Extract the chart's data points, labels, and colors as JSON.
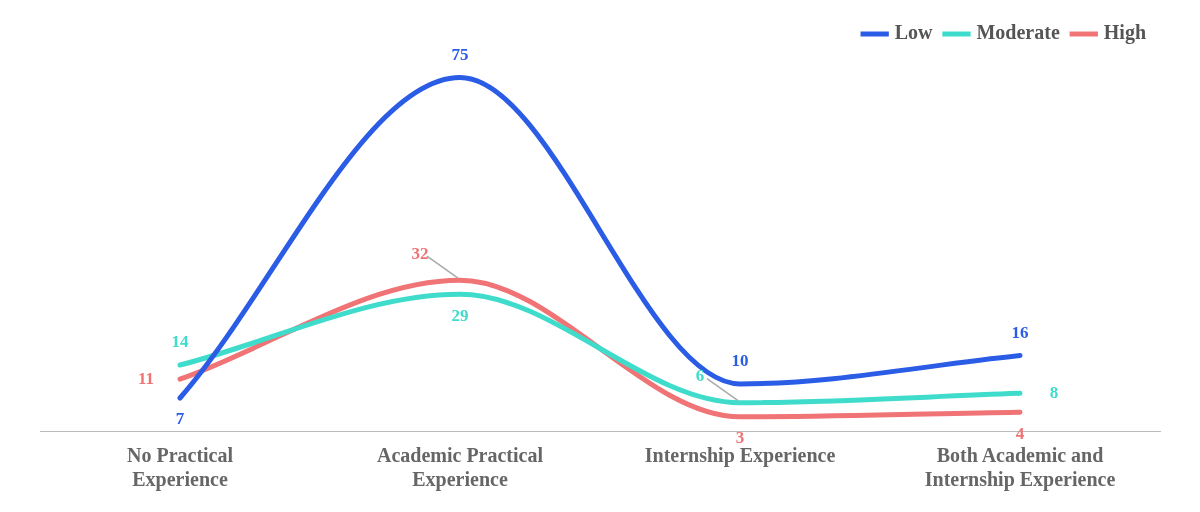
{
  "chart_data": {
    "type": "line",
    "categories": [
      "No Practical Experience",
      "Academic Practical Experience",
      "Internship Experience",
      "Both Academic and Internship Experience"
    ],
    "series": [
      {
        "name": "Low",
        "color": "#2b5ce6",
        "values": [
          7,
          75,
          10,
          16
        ]
      },
      {
        "name": "Moderate",
        "color": "#3fdccb",
        "values": [
          14,
          29,
          6,
          8
        ]
      },
      {
        "name": "High",
        "color": "#f07375",
        "values": [
          11,
          32,
          3,
          4
        ]
      }
    ],
    "data_labels": true,
    "legend": "top right",
    "grid": false,
    "marker": "none",
    "line_style": "solid"
  }
}
